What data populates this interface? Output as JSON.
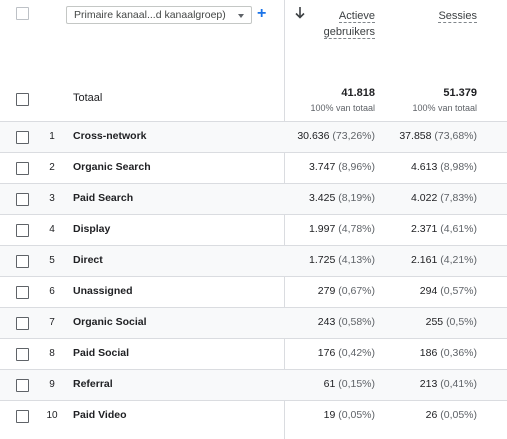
{
  "header": {
    "dimension_select": "Primaire kanaal...d kanaalgroep)",
    "add_dimension": "+",
    "columns": [
      {
        "label_line1": "Actieve",
        "label_line2": "gebruikers"
      },
      {
        "label_line1": "Sessies",
        "label_line2": ""
      }
    ]
  },
  "totals": {
    "label": "Totaal",
    "active_users": "41.818",
    "active_users_sub": "100% van totaal",
    "sessions": "51.379",
    "sessions_sub": "100% van totaal"
  },
  "rows": [
    {
      "num": "1",
      "name": "Cross-network",
      "users": "30.636",
      "users_pct": "(73,26%)",
      "sessions": "37.858",
      "sessions_pct": "(73,68%)"
    },
    {
      "num": "2",
      "name": "Organic Search",
      "users": "3.747",
      "users_pct": "(8,96%)",
      "sessions": "4.613",
      "sessions_pct": "(8,98%)"
    },
    {
      "num": "3",
      "name": "Paid Search",
      "users": "3.425",
      "users_pct": "(8,19%)",
      "sessions": "4.022",
      "sessions_pct": "(7,83%)"
    },
    {
      "num": "4",
      "name": "Display",
      "users": "1.997",
      "users_pct": "(4,78%)",
      "sessions": "2.371",
      "sessions_pct": "(4,61%)"
    },
    {
      "num": "5",
      "name": "Direct",
      "users": "1.725",
      "users_pct": "(4,13%)",
      "sessions": "2.161",
      "sessions_pct": "(4,21%)"
    },
    {
      "num": "6",
      "name": "Unassigned",
      "users": "279",
      "users_pct": "(0,67%)",
      "sessions": "294",
      "sessions_pct": "(0,57%)"
    },
    {
      "num": "7",
      "name": "Organic Social",
      "users": "243",
      "users_pct": "(0,58%)",
      "sessions": "255",
      "sessions_pct": "(0,5%)"
    },
    {
      "num": "8",
      "name": "Paid Social",
      "users": "176",
      "users_pct": "(0,42%)",
      "sessions": "186",
      "sessions_pct": "(0,36%)"
    },
    {
      "num": "9",
      "name": "Referral",
      "users": "61",
      "users_pct": "(0,15%)",
      "sessions": "213",
      "sessions_pct": "(0,41%)"
    },
    {
      "num": "10",
      "name": "Paid Video",
      "users": "19",
      "users_pct": "(0,05%)",
      "sessions": "26",
      "sessions_pct": "(0,05%)"
    }
  ],
  "icons": {
    "sort": "arrow-down-icon",
    "dropdown": "chevron-down-icon",
    "add": "plus-icon"
  },
  "colors": {
    "accent": "#1a73e8",
    "divider": "#dadce0",
    "row_alt": "#f8f9fa"
  }
}
